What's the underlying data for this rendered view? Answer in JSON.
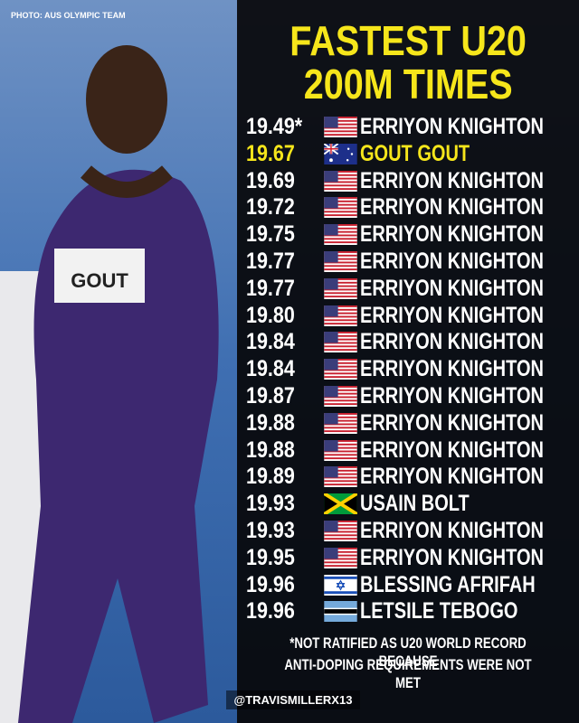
{
  "photo_credit": "PHOTO: AUS OLYMPIC TEAM",
  "photo": {
    "bib": "GOUT"
  },
  "title": [
    "FASTEST U20",
    "200M TIMES"
  ],
  "rows": [
    {
      "time": "19.49*",
      "name": "ERRIYON KNIGHTON"
    },
    {
      "time": "19.67",
      "name": "GOUT GOUT"
    },
    {
      "time": "19.69",
      "name": "ERRIYON KNIGHTON"
    },
    {
      "time": "19.72",
      "name": "ERRIYON KNIGHTON"
    },
    {
      "time": "19.75",
      "name": "ERRIYON KNIGHTON"
    },
    {
      "time": "19.77",
      "name": "ERRIYON KNIGHTON"
    },
    {
      "time": "19.77",
      "name": "ERRIYON KNIGHTON"
    },
    {
      "time": "19.80",
      "name": "ERRIYON KNIGHTON"
    },
    {
      "time": "19.84",
      "name": "ERRIYON KNIGHTON"
    },
    {
      "time": "19.84",
      "name": "ERRIYON KNIGHTON"
    },
    {
      "time": "19.87",
      "name": "ERRIYON KNIGHTON"
    },
    {
      "time": "19.88",
      "name": "ERRIYON KNIGHTON"
    },
    {
      "time": "19.88",
      "name": "ERRIYON KNIGHTON"
    },
    {
      "time": "19.89",
      "name": "ERRIYON KNIGHTON"
    },
    {
      "time": "19.93",
      "name": "USAIN BOLT"
    },
    {
      "time": "19.93",
      "name": "ERRIYON KNIGHTON"
    },
    {
      "time": "19.95",
      "name": "ERRIYON KNIGHTON"
    },
    {
      "time": "19.96",
      "name": "BLESSING AFRIFAH"
    },
    {
      "time": "19.96",
      "name": "LETSILE TEBOGO"
    }
  ],
  "footnote": [
    "*NOT RATIFIED AS U20 WORLD RECORD BECAUSE",
    "ANTI-DOPING REQUIREMENTS WERE NOT MET"
  ],
  "handle": "@TRAVISMILLERX13"
}
